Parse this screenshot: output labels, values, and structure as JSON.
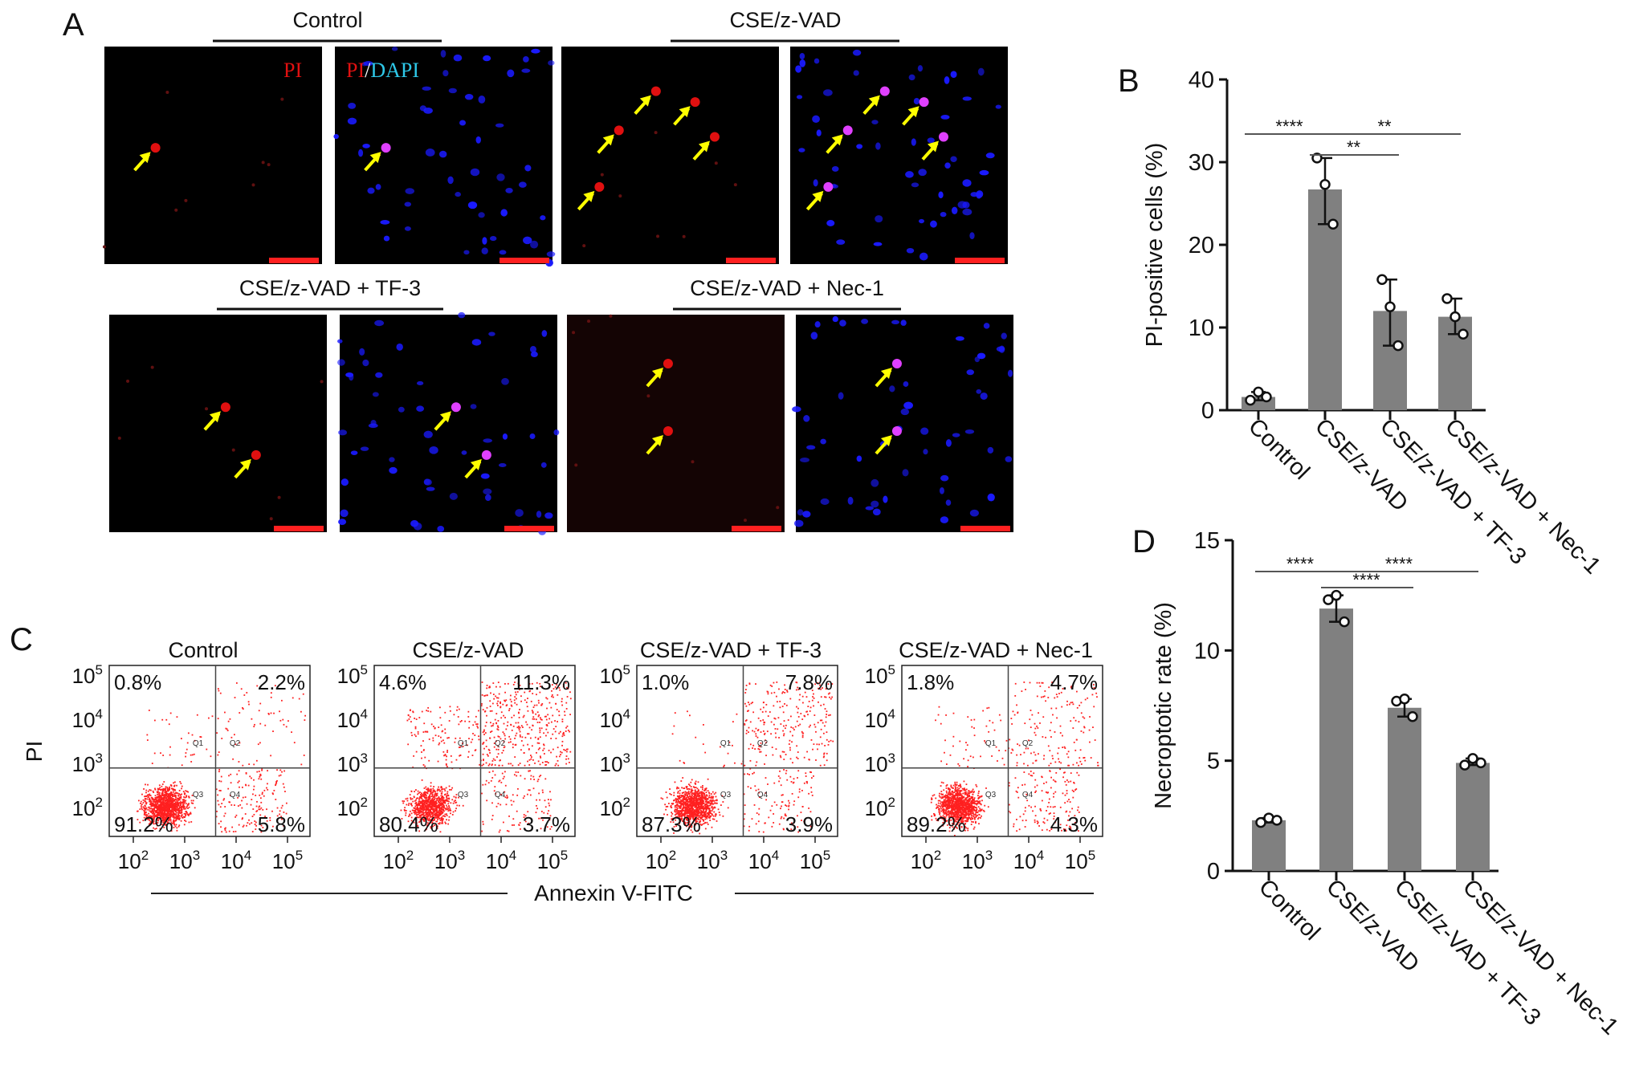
{
  "panel_labels": {
    "a": "A",
    "b": "B",
    "c": "C",
    "d": "D"
  },
  "panel_a": {
    "groups": [
      "Control",
      "CSE/z-VAD",
      "CSE/z-VAD + TF-3",
      "CSE/z-VAD + Nec-1"
    ],
    "channel_pi": "PI",
    "channel_merge_pi": "PI",
    "channel_merge_sep": "/",
    "channel_merge_dapi": "DAPI",
    "colors": {
      "pi": "#e01010",
      "dapi": "#1a1aff",
      "merge": "#e040ff",
      "arrow": "#ffff00",
      "scale_bar": "#ff2020",
      "dapi_label": "#2ec8e8"
    }
  },
  "panel_c": {
    "plots": [
      {
        "title": "Control",
        "q1": "0.8%",
        "q2": "2.2%",
        "q3": "91.2%",
        "q4": "5.8%"
      },
      {
        "title": "CSE/z-VAD",
        "q1": "4.6%",
        "q2": "11.3%",
        "q3": "80.4%",
        "q4": "3.7%"
      },
      {
        "title": "CSE/z-VAD + TF-3",
        "q1": "1.0%",
        "q2": "7.8%",
        "q3": "87.3%",
        "q4": "3.9%"
      },
      {
        "title": "CSE/z-VAD + Nec-1",
        "q1": "1.8%",
        "q2": "4.7%",
        "q3": "89.2%",
        "q4": "4.3%"
      }
    ],
    "quadrant_names": [
      "Q1",
      "Q2",
      "Q3",
      "Q4"
    ],
    "ylabel": "PI",
    "xlabel": "Annexin V-FITC",
    "ticks": [
      "2",
      "3",
      "4",
      "5"
    ],
    "tick_base": "10",
    "dot_color": "#ff2020"
  },
  "chart_data": [
    {
      "type": "bar",
      "panel": "B",
      "categories": [
        "Control",
        "CSE/z-VAD",
        "CSE/z-VAD + TF-3",
        "CSE/z-VAD + Nec-1"
      ],
      "values": [
        1.6,
        26.7,
        12.0,
        11.3
      ],
      "points": [
        [
          1.2,
          2.2,
          1.6
        ],
        [
          30.5,
          27.3,
          22.5
        ],
        [
          15.8,
          12.5,
          7.8
        ],
        [
          13.5,
          11.3,
          9.2
        ]
      ],
      "error_range": [
        [
          1.2,
          2.2
        ],
        [
          22.5,
          30.5
        ],
        [
          7.8,
          15.8
        ],
        [
          9.2,
          13.5
        ]
      ],
      "ylabel": "PI-positive cells (%)",
      "ylim": [
        0,
        40
      ],
      "yticks": [
        0,
        10,
        20,
        30,
        40
      ],
      "significance": [
        {
          "from": 0,
          "to": 1,
          "label": "****"
        },
        {
          "from": 1,
          "to": 2,
          "label": "**"
        },
        {
          "from": 1,
          "to": 3,
          "label": "**"
        }
      ],
      "bar_color": "#808080"
    },
    {
      "type": "bar",
      "panel": "D",
      "categories": [
        "Control",
        "CSE/z-VAD",
        "CSE/z-VAD + TF-3",
        "CSE/z-VAD + Nec-1"
      ],
      "values": [
        2.3,
        11.9,
        7.4,
        4.9
      ],
      "points": [
        [
          2.2,
          2.4,
          2.3
        ],
        [
          12.3,
          12.5,
          11.3
        ],
        [
          7.7,
          7.8,
          7.0
        ],
        [
          4.8,
          5.1,
          4.9
        ]
      ],
      "error_range": [
        [
          2.2,
          2.4
        ],
        [
          11.3,
          12.5
        ],
        [
          7.0,
          7.8
        ],
        [
          4.8,
          5.1
        ]
      ],
      "ylabel": "Necroptotic rate (%)",
      "ylim": [
        0,
        15
      ],
      "yticks": [
        0,
        5,
        10,
        15
      ],
      "significance": [
        {
          "from": 0,
          "to": 1,
          "label": "****"
        },
        {
          "from": 1,
          "to": 2,
          "label": "****"
        },
        {
          "from": 1,
          "to": 3,
          "label": "****"
        }
      ],
      "bar_color": "#808080"
    }
  ]
}
